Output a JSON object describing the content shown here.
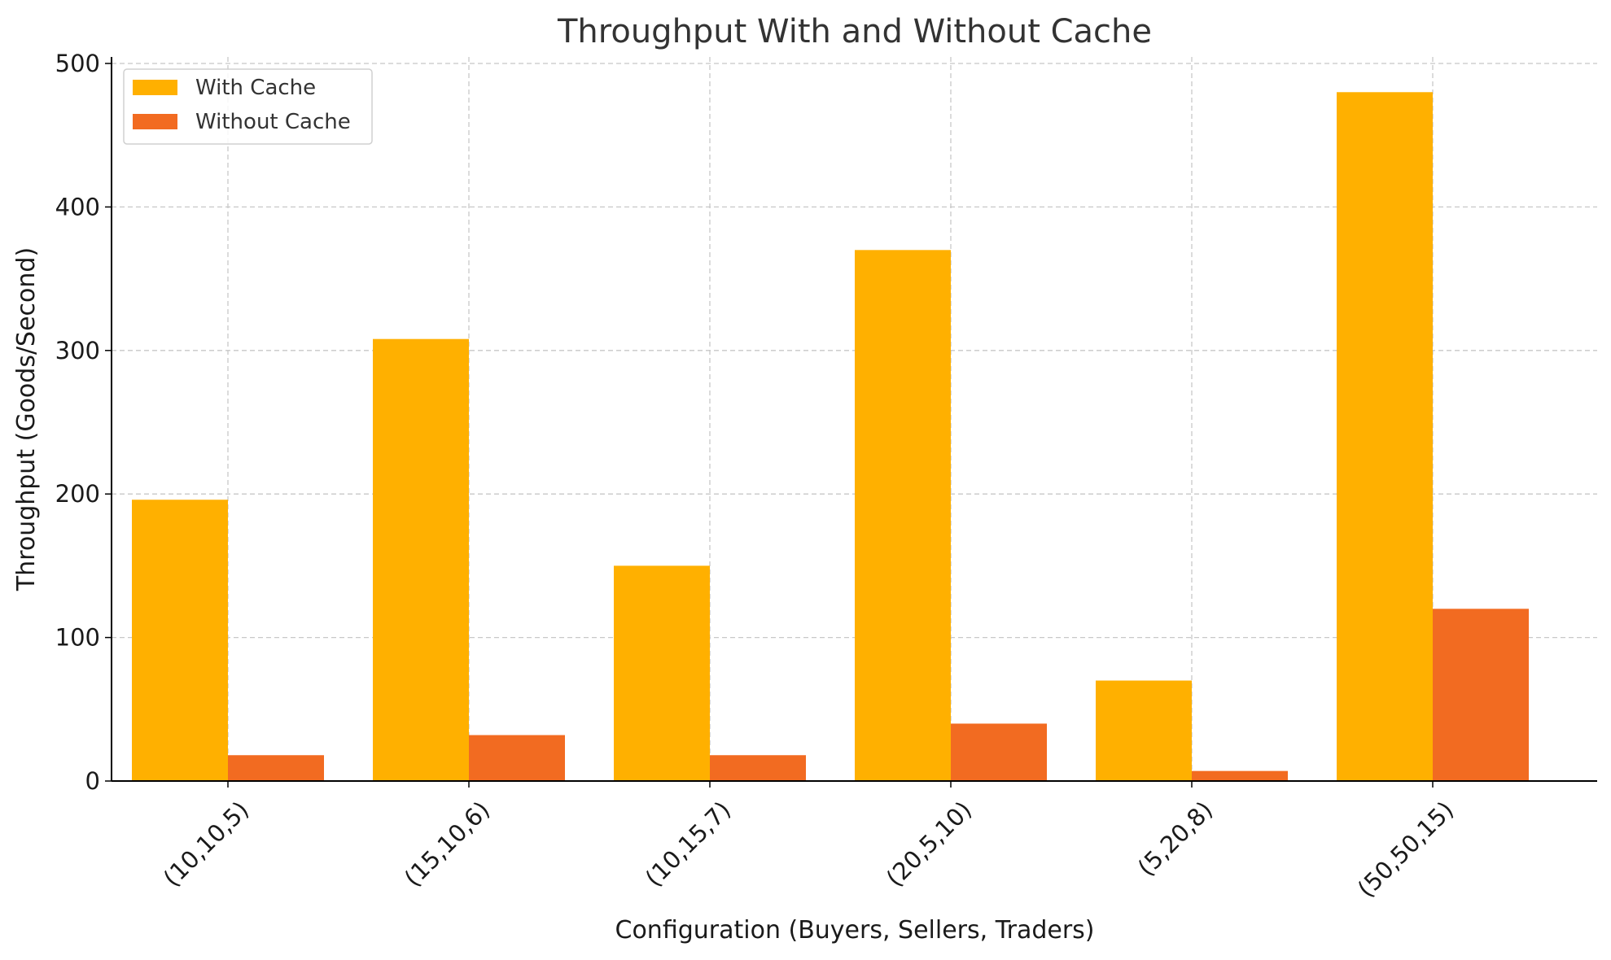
{
  "chart_data": {
    "type": "bar",
    "title": "Throughput With and Without Cache",
    "xlabel": "Configuration (Buyers, Sellers, Traders)",
    "ylabel": "Throughput (Goods/Second)",
    "categories": [
      "(10,10,5)",
      "(15,10,6)",
      "(10,15,7)",
      "(20,5,10)",
      "(5,20,8)",
      "(50,50,15)"
    ],
    "series": [
      {
        "name": "With Cache",
        "color": "#FFB000",
        "values": [
          196,
          308,
          150,
          370,
          70,
          480
        ]
      },
      {
        "name": "Without Cache",
        "color": "#F26B21",
        "values": [
          18,
          32,
          18,
          40,
          7,
          120
        ]
      }
    ],
    "ylim": [
      0,
      500
    ],
    "yticks": [
      0,
      100,
      200,
      300,
      400,
      500
    ],
    "grid": true,
    "legend": "top-left"
  }
}
